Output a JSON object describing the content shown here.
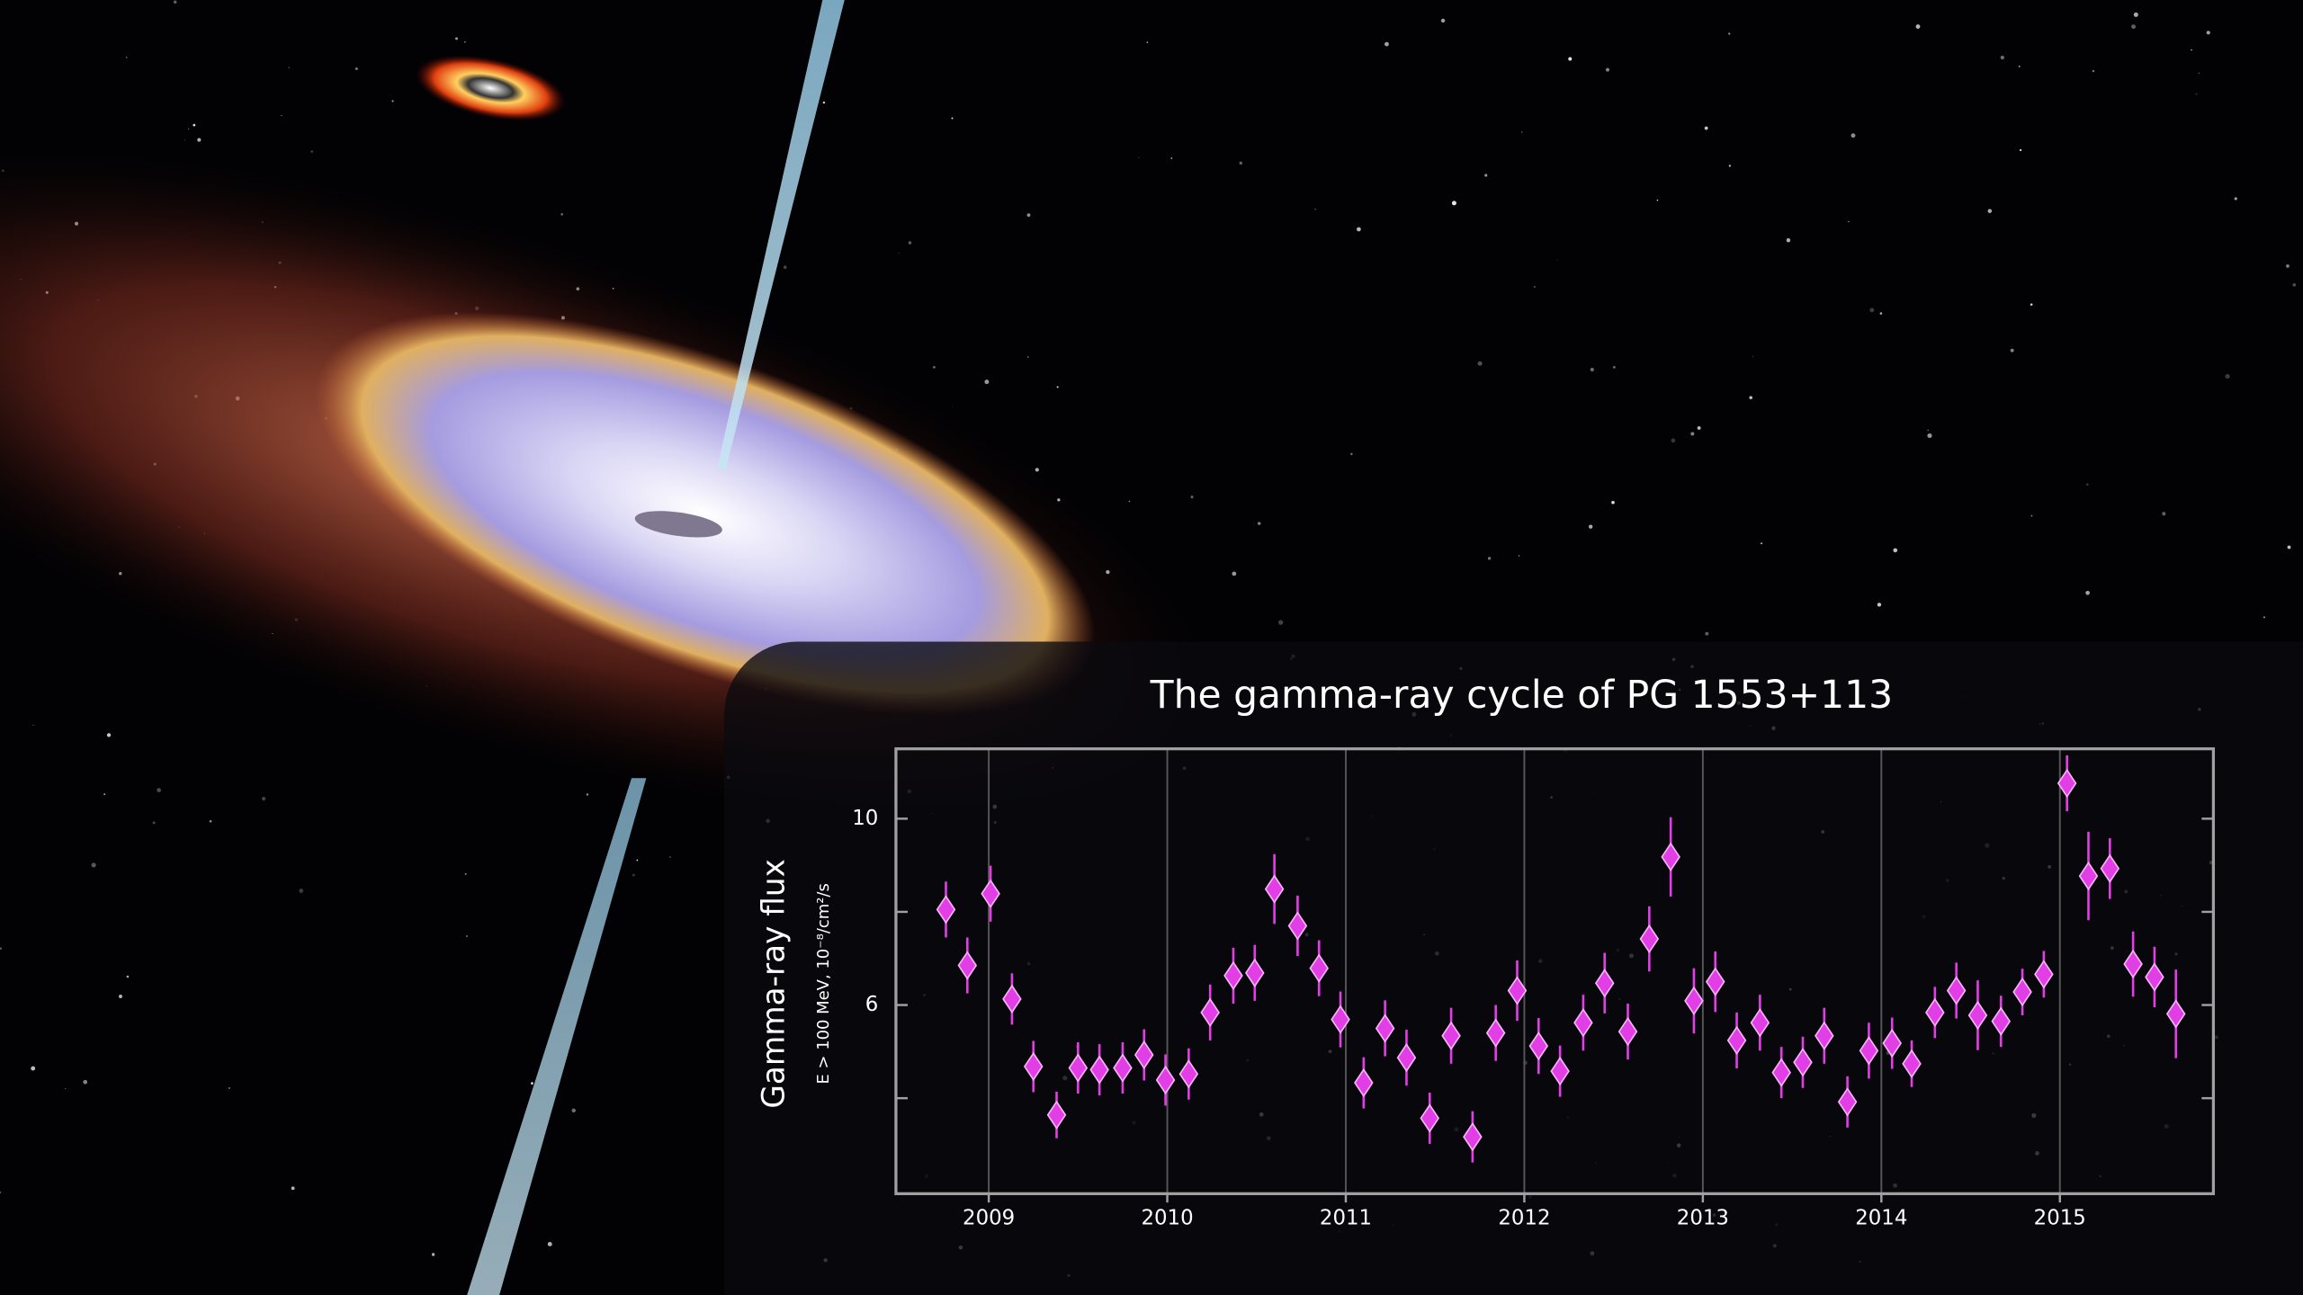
{
  "chart_data": {
    "type": "scatter",
    "title": "The gamma-ray cycle of PG 1553+113",
    "y_label": "Gamma-ray flux",
    "y_sublabel": "E > 100 MeV, 10⁻⁸/cm²/s",
    "color": "#e23ee6",
    "x": [
      2008.76,
      2008.88,
      2009.01,
      2009.13,
      2009.25,
      2009.38,
      2009.5,
      2009.62,
      2009.75,
      2009.87,
      2009.99,
      2010.12,
      2010.24,
      2010.37,
      2010.49,
      2010.6,
      2010.73,
      2010.85,
      2010.97,
      2011.1,
      2011.22,
      2011.34,
      2011.47,
      2011.59,
      2011.71,
      2011.84,
      2011.96,
      2012.08,
      2012.2,
      2012.33,
      2012.45,
      2012.58,
      2012.7,
      2012.82,
      2012.95,
      2013.07,
      2013.19,
      2013.32,
      2013.44,
      2013.56,
      2013.68,
      2013.81,
      2013.93,
      2014.06,
      2014.17,
      2014.3,
      2014.42,
      2014.54,
      2014.67,
      2014.79,
      2014.91,
      2015.04,
      2015.16,
      2015.28,
      2015.41,
      2015.53,
      2015.65
    ],
    "values": [
      8.05,
      6.85,
      8.39,
      6.13,
      4.68,
      3.64,
      4.65,
      4.61,
      4.65,
      4.93,
      4.39,
      4.52,
      5.84,
      6.63,
      6.69,
      8.49,
      7.7,
      6.79,
      5.69,
      4.33,
      5.5,
      4.87,
      3.57,
      5.34,
      3.17,
      5.4,
      6.31,
      5.12,
      4.58,
      5.62,
      6.47,
      5.43,
      7.42,
      9.18,
      6.09,
      6.5,
      5.24,
      5.62,
      4.55,
      4.77,
      5.34,
      3.92,
      5.02,
      5.18,
      4.74,
      5.84,
      6.31,
      5.78,
      5.65,
      6.28,
      6.66,
      10.76,
      8.77,
      8.93,
      6.88,
      6.6,
      5.81
    ],
    "errors": [
      0.6,
      0.6,
      0.6,
      0.55,
      0.55,
      0.5,
      0.55,
      0.55,
      0.55,
      0.55,
      0.55,
      0.55,
      0.6,
      0.6,
      0.6,
      0.75,
      0.65,
      0.6,
      0.6,
      0.55,
      0.6,
      0.6,
      0.55,
      0.6,
      0.55,
      0.6,
      0.65,
      0.6,
      0.55,
      0.6,
      0.65,
      0.6,
      0.7,
      0.85,
      0.7,
      0.65,
      0.6,
      0.6,
      0.55,
      0.55,
      0.6,
      0.55,
      0.6,
      0.55,
      0.5,
      0.55,
      0.6,
      0.75,
      0.55,
      0.5,
      0.5,
      0.6,
      0.95,
      0.65,
      0.7,
      0.65,
      0.95
    ],
    "xlim": [
      2008.48,
      2015.86
    ],
    "xticks": [
      2009,
      2010,
      2011,
      2012,
      2013,
      2014,
      2015
    ],
    "ylim": [
      1.95,
      11.5
    ],
    "yticks": [
      6,
      10
    ],
    "yminorticks": [
      4,
      8
    ],
    "grid": true
  }
}
